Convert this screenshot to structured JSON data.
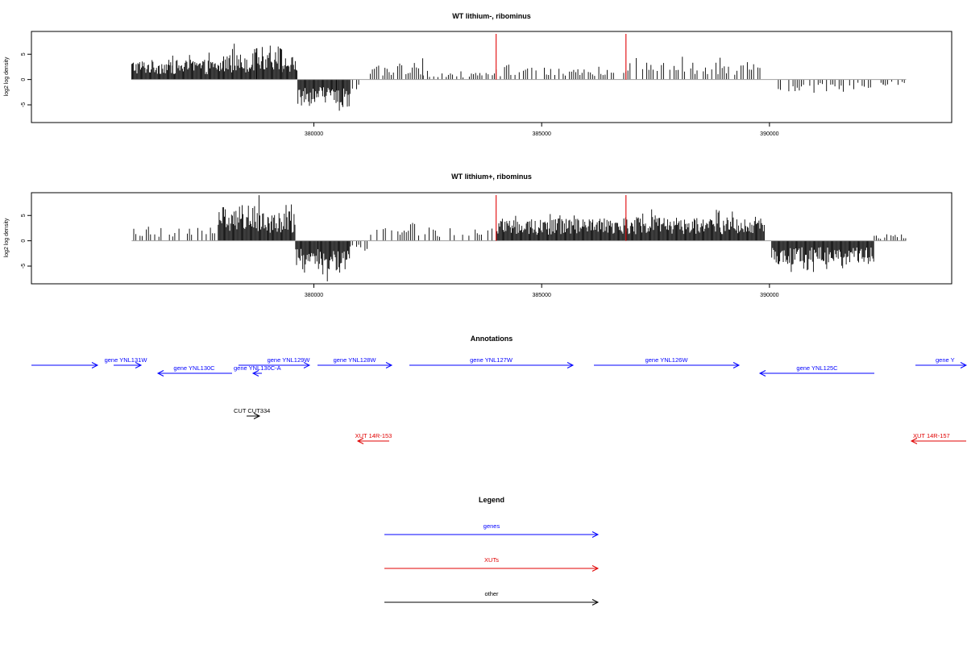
{
  "chart_data": [
    {
      "type": "bar",
      "title": "WT lithium-, ribominus",
      "ylabel": "log2 log density",
      "xlim": [
        373800,
        394000
      ],
      "ylim": [
        -8.5,
        9.5
      ],
      "x_ticks": [
        380000,
        385000,
        390000
      ],
      "x_tick_labels": [
        "380000",
        "385000",
        "390000"
      ],
      "y_ticks": [
        -5,
        0,
        5
      ],
      "y_tick_labels": [
        "-5",
        "0",
        "5"
      ],
      "baseline_range": [
        376000,
        393000
      ],
      "markers": [
        {
          "x": 384000,
          "color": "#e41a1c"
        },
        {
          "x": 386850,
          "color": "#e41a1c"
        }
      ],
      "density_profile": [
        {
          "from": 376000,
          "to": 376900,
          "value": 3.0
        },
        {
          "from": 376900,
          "to": 378000,
          "value": 3.0
        },
        {
          "from": 378000,
          "to": 378750,
          "value": 4.0
        },
        {
          "from": 378750,
          "to": 379300,
          "value": 5.0
        },
        {
          "from": 379300,
          "to": 379650,
          "value": 3.5
        },
        {
          "from": 379650,
          "to": 380500,
          "value": -4.0
        },
        {
          "from": 380500,
          "to": 380800,
          "value": -5.0
        },
        {
          "from": 380800,
          "to": 381000,
          "value": -1.8
        },
        {
          "from": 381100,
          "to": 381700,
          "value": 1.8
        },
        {
          "from": 381700,
          "to": 382400,
          "value": 2.6
        },
        {
          "from": 382400,
          "to": 384000,
          "value": 1.0
        },
        {
          "from": 384000,
          "to": 386800,
          "value": 1.8
        },
        {
          "from": 386800,
          "to": 389900,
          "value": 2.6
        },
        {
          "from": 390150,
          "to": 392500,
          "value": -1.8
        },
        {
          "from": 392500,
          "to": 393000,
          "value": -1.0
        }
      ]
    },
    {
      "type": "bar",
      "title": "WT lithium+, ribominus",
      "ylabel": "log2 log density",
      "xlim": [
        373800,
        394000
      ],
      "ylim": [
        -8.5,
        9.5
      ],
      "x_ticks": [
        380000,
        385000,
        390000
      ],
      "x_tick_labels": [
        "380000",
        "385000",
        "390000"
      ],
      "y_ticks": [
        -5,
        0,
        5
      ],
      "y_tick_labels": [
        "-5",
        "0",
        "5"
      ],
      "baseline_range": [
        376000,
        393000
      ],
      "markers": [
        {
          "x": 384000,
          "color": "#e41a1c"
        },
        {
          "x": 386850,
          "color": "#e41a1c"
        }
      ],
      "density_profile": [
        {
          "from": 376000,
          "to": 376900,
          "value": 2.2
        },
        {
          "from": 376900,
          "to": 377900,
          "value": 2.0
        },
        {
          "from": 377900,
          "to": 379000,
          "value": 5.5
        },
        {
          "from": 379000,
          "to": 379600,
          "value": 4.5
        },
        {
          "from": 379600,
          "to": 380100,
          "value": -4.0
        },
        {
          "from": 380100,
          "to": 380800,
          "value": -5.2
        },
        {
          "from": 380800,
          "to": 381200,
          "value": -2.0
        },
        {
          "from": 381200,
          "to": 382300,
          "value": 2.6
        },
        {
          "from": 382300,
          "to": 384000,
          "value": 2.0
        },
        {
          "from": 384000,
          "to": 386850,
          "value": 3.4
        },
        {
          "from": 386850,
          "to": 389900,
          "value": 3.6
        },
        {
          "from": 390050,
          "to": 392300,
          "value": -3.6
        },
        {
          "from": 392300,
          "to": 393000,
          "value": 1.0
        }
      ]
    }
  ],
  "annotations": {
    "title": "Annotations",
    "features": [
      {
        "label": "gene YNL131W",
        "kind": "gene",
        "strand": "+",
        "from": 373800,
        "to": 375100,
        "row": 0
      },
      {
        "label": "gene YNL131W",
        "kind": "gene",
        "strand": "+",
        "from": 375400,
        "to": 375700,
        "row": 0,
        "text_only": true
      },
      {
        "label": "gene YNL130C",
        "kind": "gene",
        "strand": "-",
        "from": 376700,
        "to": 377800,
        "row": 1
      },
      {
        "label": "gene YNL130C-A",
        "kind": "gene",
        "strand": "-",
        "from": 377700,
        "to": 378000,
        "row": 1
      },
      {
        "label": "gene YNL129W",
        "kind": "gene",
        "strand": "+",
        "from": 378000,
        "to": 379000,
        "row": 0
      },
      {
        "label": "gene YNL128W",
        "kind": "gene",
        "strand": "+",
        "from": 379100,
        "to": 380400,
        "row": 0
      },
      {
        "label": "gene YNL127W",
        "kind": "gene",
        "strand": "+",
        "from": 380800,
        "to": 383600,
        "row": 0
      },
      {
        "label": "gene YNL126W",
        "kind": "gene",
        "strand": "+",
        "from": 384000,
        "to": 386500,
        "row": 0
      },
      {
        "label": "gene YNL125C",
        "kind": "gene",
        "strand": "-",
        "from": 386900,
        "to": 389000,
        "row": 1
      },
      {
        "label": "gene Y",
        "kind": "gene",
        "strand": "+",
        "from": 389700,
        "to": 390400,
        "row": 0
      },
      {
        "label": "CUT CUT334",
        "kind": "other",
        "strand": "+",
        "from": 377900,
        "to": 378300,
        "row": 2
      },
      {
        "label": "XUT 14R-153",
        "kind": "xut",
        "strand": "-",
        "from": 379700,
        "to": 380200,
        "row": 3
      },
      {
        "label": "XUT 14R-157",
        "kind": "xut",
        "strand": "-",
        "from": 389700,
        "to": 390400,
        "row": 3
      }
    ]
  },
  "legend": {
    "title": "Legend",
    "items": [
      {
        "label": "genes",
        "kind": "gene"
      },
      {
        "label": "XUTs",
        "kind": "xut"
      },
      {
        "label": "other",
        "kind": "other"
      }
    ]
  },
  "colors": {
    "gene": "#0000ff",
    "xut": "#e00000",
    "other": "#000000",
    "marker": "#e41a1c",
    "baseline": "#a0a0a0",
    "bars": "#000000"
  }
}
